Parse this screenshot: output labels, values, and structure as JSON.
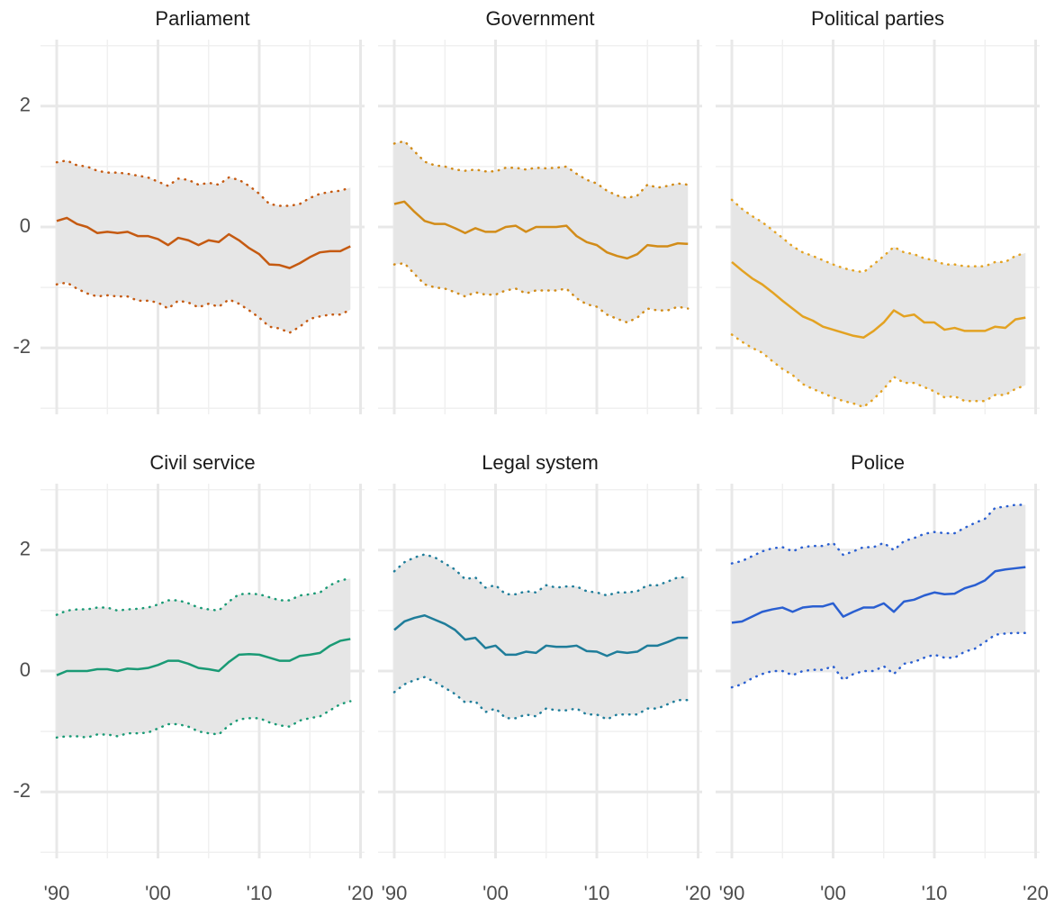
{
  "chart_data": [
    {
      "type": "line",
      "title": "Parliament",
      "color": "#c55a11",
      "x": [
        1990,
        1991,
        1992,
        1993,
        1994,
        1995,
        1996,
        1997,
        1998,
        1999,
        2000,
        2001,
        2002,
        2003,
        2004,
        2005,
        2006,
        2007,
        2008,
        2009,
        2010,
        2011,
        2012,
        2013,
        2014,
        2015,
        2016,
        2017,
        2018,
        2019
      ],
      "values": [
        0.1,
        0.15,
        0.05,
        0.0,
        -0.1,
        -0.08,
        -0.1,
        -0.08,
        -0.15,
        -0.15,
        -0.2,
        -0.3,
        -0.18,
        -0.22,
        -0.3,
        -0.22,
        -0.25,
        -0.12,
        -0.22,
        -0.35,
        -0.45,
        -0.62,
        -0.63,
        -0.68,
        -0.6,
        -0.5,
        -0.42,
        -0.4,
        -0.4,
        -0.32
      ],
      "upper": [
        1.07,
        1.1,
        1.02,
        1.0,
        0.93,
        0.9,
        0.9,
        0.88,
        0.85,
        0.82,
        0.75,
        0.68,
        0.8,
        0.78,
        0.7,
        0.73,
        0.7,
        0.82,
        0.78,
        0.68,
        0.55,
        0.38,
        0.35,
        0.35,
        0.38,
        0.48,
        0.55,
        0.58,
        0.6,
        0.65
      ],
      "lower": [
        -0.95,
        -0.92,
        -1.02,
        -1.1,
        -1.15,
        -1.13,
        -1.15,
        -1.15,
        -1.22,
        -1.22,
        -1.25,
        -1.35,
        -1.22,
        -1.25,
        -1.33,
        -1.27,
        -1.32,
        -1.2,
        -1.27,
        -1.38,
        -1.5,
        -1.65,
        -1.68,
        -1.75,
        -1.65,
        -1.52,
        -1.48,
        -1.45,
        -1.45,
        -1.37
      ],
      "xlim": [
        1988.4,
        2020.4
      ],
      "ylim": [
        -3.1,
        3.1
      ],
      "xticks": [
        {
          "value": 1990,
          "label": "'90"
        },
        {
          "value": 2000,
          "label": "'00"
        },
        {
          "value": 2010,
          "label": "'10"
        },
        {
          "value": 2020,
          "label": "'20"
        }
      ],
      "xminor": [
        1995,
        2005,
        2015
      ],
      "yticks": [
        -2,
        0,
        2
      ],
      "yminor": [
        -3,
        -1,
        1,
        3
      ],
      "grid": true
    },
    {
      "type": "line",
      "title": "Government",
      "color": "#d28c19",
      "x": [
        1990,
        1991,
        1992,
        1993,
        1994,
        1995,
        1996,
        1997,
        1998,
        1999,
        2000,
        2001,
        2002,
        2003,
        2004,
        2005,
        2006,
        2007,
        2008,
        2009,
        2010,
        2011,
        2012,
        2013,
        2014,
        2015,
        2016,
        2017,
        2018,
        2019
      ],
      "values": [
        0.38,
        0.42,
        0.25,
        0.1,
        0.05,
        0.05,
        -0.02,
        -0.1,
        -0.02,
        -0.08,
        -0.08,
        0.0,
        0.02,
        -0.08,
        0.0,
        0.0,
        0.0,
        0.02,
        -0.15,
        -0.25,
        -0.3,
        -0.42,
        -0.48,
        -0.52,
        -0.45,
        -0.3,
        -0.32,
        -0.32,
        -0.27,
        -0.28
      ],
      "upper": [
        1.38,
        1.42,
        1.25,
        1.08,
        1.02,
        1.0,
        0.95,
        0.93,
        0.95,
        0.92,
        0.92,
        0.98,
        0.98,
        0.95,
        0.98,
        0.97,
        0.98,
        1.0,
        0.88,
        0.78,
        0.72,
        0.6,
        0.52,
        0.48,
        0.52,
        0.7,
        0.65,
        0.68,
        0.72,
        0.7
      ],
      "lower": [
        -0.62,
        -0.6,
        -0.78,
        -0.95,
        -1.0,
        -1.02,
        -1.08,
        -1.15,
        -1.08,
        -1.12,
        -1.12,
        -1.05,
        -1.02,
        -1.1,
        -1.05,
        -1.05,
        -1.05,
        -1.02,
        -1.18,
        -1.28,
        -1.32,
        -1.45,
        -1.52,
        -1.58,
        -1.5,
        -1.35,
        -1.38,
        -1.38,
        -1.32,
        -1.35
      ],
      "xlim": [
        1988.4,
        2020.4
      ],
      "ylim": [
        -3.1,
        3.1
      ],
      "xticks": [
        {
          "value": 1990,
          "label": "'90"
        },
        {
          "value": 2000,
          "label": "'00"
        },
        {
          "value": 2010,
          "label": "'10"
        },
        {
          "value": 2020,
          "label": "'20"
        }
      ],
      "xminor": [
        1995,
        2005,
        2015
      ],
      "yticks": [
        -2,
        0,
        2
      ],
      "yminor": [
        -3,
        -1,
        1,
        3
      ],
      "grid": true
    },
    {
      "type": "line",
      "title": "Political parties",
      "color": "#e3a222",
      "x": [
        1990,
        1991,
        1992,
        1993,
        1994,
        1995,
        1996,
        1997,
        1998,
        1999,
        2000,
        2001,
        2002,
        2003,
        2004,
        2005,
        2006,
        2007,
        2008,
        2009,
        2010,
        2011,
        2012,
        2013,
        2014,
        2015,
        2016,
        2017,
        2018,
        2019
      ],
      "values": [
        -0.58,
        -0.72,
        -0.85,
        -0.95,
        -1.08,
        -1.22,
        -1.35,
        -1.48,
        -1.55,
        -1.65,
        -1.7,
        -1.75,
        -1.8,
        -1.83,
        -1.72,
        -1.58,
        -1.38,
        -1.48,
        -1.45,
        -1.58,
        -1.58,
        -1.7,
        -1.67,
        -1.72,
        -1.72,
        -1.72,
        -1.65,
        -1.67,
        -1.53,
        -1.5
      ],
      "upper": [
        0.45,
        0.3,
        0.18,
        0.08,
        -0.05,
        -0.18,
        -0.32,
        -0.42,
        -0.48,
        -0.55,
        -0.62,
        -0.68,
        -0.72,
        -0.75,
        -0.62,
        -0.48,
        -0.33,
        -0.42,
        -0.45,
        -0.52,
        -0.55,
        -0.62,
        -0.62,
        -0.65,
        -0.65,
        -0.65,
        -0.58,
        -0.58,
        -0.48,
        -0.43
      ],
      "lower": [
        -1.78,
        -1.9,
        -2.0,
        -2.08,
        -2.22,
        -2.35,
        -2.45,
        -2.6,
        -2.68,
        -2.75,
        -2.82,
        -2.88,
        -2.92,
        -2.98,
        -2.85,
        -2.68,
        -2.48,
        -2.58,
        -2.58,
        -2.65,
        -2.72,
        -2.82,
        -2.8,
        -2.88,
        -2.88,
        -2.88,
        -2.78,
        -2.78,
        -2.68,
        -2.62
      ],
      "xlim": [
        1988.4,
        2020.4
      ],
      "ylim": [
        -3.1,
        3.1
      ],
      "xticks": [
        {
          "value": 1990,
          "label": "'90"
        },
        {
          "value": 2000,
          "label": "'00"
        },
        {
          "value": 2010,
          "label": "'10"
        },
        {
          "value": 2020,
          "label": "'20"
        }
      ],
      "xminor": [
        1995,
        2005,
        2015
      ],
      "yticks": [
        -2,
        0,
        2
      ],
      "yminor": [
        -3,
        -1,
        1,
        3
      ],
      "grid": true
    },
    {
      "type": "line",
      "title": "Civil service",
      "color": "#1a9a75",
      "x": [
        1990,
        1991,
        1992,
        1993,
        1994,
        1995,
        1996,
        1997,
        1998,
        1999,
        2000,
        2001,
        2002,
        2003,
        2004,
        2005,
        2006,
        2007,
        2008,
        2009,
        2010,
        2011,
        2012,
        2013,
        2014,
        2015,
        2016,
        2017,
        2018,
        2019
      ],
      "values": [
        -0.07,
        0.0,
        0.0,
        0.0,
        0.03,
        0.03,
        0.0,
        0.04,
        0.03,
        0.05,
        0.1,
        0.17,
        0.17,
        0.12,
        0.05,
        0.03,
        0.0,
        0.15,
        0.27,
        0.28,
        0.27,
        0.22,
        0.17,
        0.17,
        0.25,
        0.27,
        0.3,
        0.42,
        0.5,
        0.53
      ],
      "upper": [
        0.93,
        1.0,
        1.02,
        1.02,
        1.05,
        1.05,
        1.0,
        1.02,
        1.03,
        1.05,
        1.1,
        1.17,
        1.17,
        1.12,
        1.05,
        1.02,
        1.0,
        1.15,
        1.27,
        1.28,
        1.27,
        1.22,
        1.17,
        1.17,
        1.25,
        1.27,
        1.3,
        1.42,
        1.5,
        1.53
      ],
      "lower": [
        -1.1,
        -1.08,
        -1.08,
        -1.1,
        -1.05,
        -1.05,
        -1.08,
        -1.03,
        -1.03,
        -1.02,
        -0.95,
        -0.88,
        -0.88,
        -0.92,
        -1.0,
        -1.03,
        -1.05,
        -0.9,
        -0.8,
        -0.78,
        -0.78,
        -0.85,
        -0.9,
        -0.92,
        -0.82,
        -0.78,
        -0.75,
        -0.65,
        -0.55,
        -0.5
      ],
      "xlim": [
        1988.4,
        2020.4
      ],
      "ylim": [
        -3.1,
        3.1
      ],
      "xticks": [
        {
          "value": 1990,
          "label": "'90"
        },
        {
          "value": 2000,
          "label": "'00"
        },
        {
          "value": 2010,
          "label": "'10"
        },
        {
          "value": 2020,
          "label": "'20"
        }
      ],
      "xminor": [
        1995,
        2005,
        2015
      ],
      "yticks": [
        -2,
        0,
        2
      ],
      "yminor": [
        -3,
        -1,
        1,
        3
      ],
      "grid": true
    },
    {
      "type": "line",
      "title": "Legal system",
      "color": "#1f7d9a",
      "x": [
        1990,
        1991,
        1992,
        1993,
        1994,
        1995,
        1996,
        1997,
        1998,
        1999,
        2000,
        2001,
        2002,
        2003,
        2004,
        2005,
        2006,
        2007,
        2008,
        2009,
        2010,
        2011,
        2012,
        2013,
        2014,
        2015,
        2016,
        2017,
        2018,
        2019
      ],
      "values": [
        0.68,
        0.82,
        0.88,
        0.92,
        0.85,
        0.78,
        0.68,
        0.52,
        0.55,
        0.38,
        0.42,
        0.27,
        0.27,
        0.32,
        0.3,
        0.42,
        0.4,
        0.4,
        0.42,
        0.33,
        0.32,
        0.25,
        0.32,
        0.3,
        0.32,
        0.42,
        0.42,
        0.48,
        0.55,
        0.55
      ],
      "upper": [
        1.65,
        1.8,
        1.88,
        1.93,
        1.88,
        1.78,
        1.68,
        1.52,
        1.55,
        1.38,
        1.42,
        1.27,
        1.27,
        1.32,
        1.3,
        1.42,
        1.38,
        1.4,
        1.4,
        1.32,
        1.3,
        1.25,
        1.3,
        1.3,
        1.32,
        1.42,
        1.42,
        1.48,
        1.55,
        1.55
      ],
      "lower": [
        -0.35,
        -0.22,
        -0.15,
        -0.1,
        -0.18,
        -0.28,
        -0.38,
        -0.52,
        -0.5,
        -0.68,
        -0.62,
        -0.78,
        -0.78,
        -0.72,
        -0.75,
        -0.62,
        -0.65,
        -0.65,
        -0.62,
        -0.72,
        -0.72,
        -0.8,
        -0.72,
        -0.72,
        -0.72,
        -0.62,
        -0.62,
        -0.55,
        -0.48,
        -0.48
      ],
      "xlim": [
        1988.4,
        2020.4
      ],
      "ylim": [
        -3.1,
        3.1
      ],
      "xticks": [
        {
          "value": 1990,
          "label": "'90"
        },
        {
          "value": 2000,
          "label": "'00"
        },
        {
          "value": 2010,
          "label": "'10"
        },
        {
          "value": 2020,
          "label": "'20"
        }
      ],
      "xminor": [
        1995,
        2005,
        2015
      ],
      "yticks": [
        -2,
        0,
        2
      ],
      "yminor": [
        -3,
        -1,
        1,
        3
      ],
      "grid": true
    },
    {
      "type": "line",
      "title": "Police",
      "color": "#2a5fd1",
      "x": [
        1990,
        1991,
        1992,
        1993,
        1994,
        1995,
        1996,
        1997,
        1998,
        1999,
        2000,
        2001,
        2002,
        2003,
        2004,
        2005,
        2006,
        2007,
        2008,
        2009,
        2010,
        2011,
        2012,
        2013,
        2014,
        2015,
        2016,
        2017,
        2018,
        2019
      ],
      "values": [
        0.8,
        0.82,
        0.9,
        0.98,
        1.02,
        1.05,
        0.98,
        1.05,
        1.07,
        1.07,
        1.12,
        0.9,
        0.98,
        1.05,
        1.05,
        1.12,
        0.98,
        1.15,
        1.18,
        1.25,
        1.3,
        1.27,
        1.28,
        1.37,
        1.42,
        1.5,
        1.65,
        1.68,
        1.7,
        1.72
      ],
      "upper": [
        1.78,
        1.82,
        1.9,
        1.98,
        2.03,
        2.05,
        1.98,
        2.05,
        2.07,
        2.07,
        2.12,
        1.92,
        1.98,
        2.05,
        2.05,
        2.12,
        2.0,
        2.15,
        2.2,
        2.27,
        2.3,
        2.28,
        2.28,
        2.37,
        2.45,
        2.52,
        2.7,
        2.72,
        2.75,
        2.75
      ],
      "lower": [
        -0.27,
        -0.22,
        -0.12,
        -0.05,
        0.0,
        0.0,
        -0.07,
        0.0,
        0.02,
        0.02,
        0.08,
        -0.15,
        -0.05,
        0.0,
        0.0,
        0.08,
        -0.05,
        0.12,
        0.15,
        0.22,
        0.27,
        0.22,
        0.22,
        0.32,
        0.37,
        0.48,
        0.6,
        0.62,
        0.63,
        0.63
      ],
      "xlim": [
        1988.4,
        2020.4
      ],
      "ylim": [
        -3.1,
        3.1
      ],
      "xticks": [
        {
          "value": 1990,
          "label": "'90"
        },
        {
          "value": 2000,
          "label": "'00"
        },
        {
          "value": 2010,
          "label": "'10"
        },
        {
          "value": 2020,
          "label": "'20"
        }
      ],
      "xminor": [
        1995,
        2005,
        2015
      ],
      "yticks": [
        -2,
        0,
        2
      ],
      "yminor": [
        -3,
        -1,
        1,
        3
      ],
      "grid": true
    }
  ]
}
